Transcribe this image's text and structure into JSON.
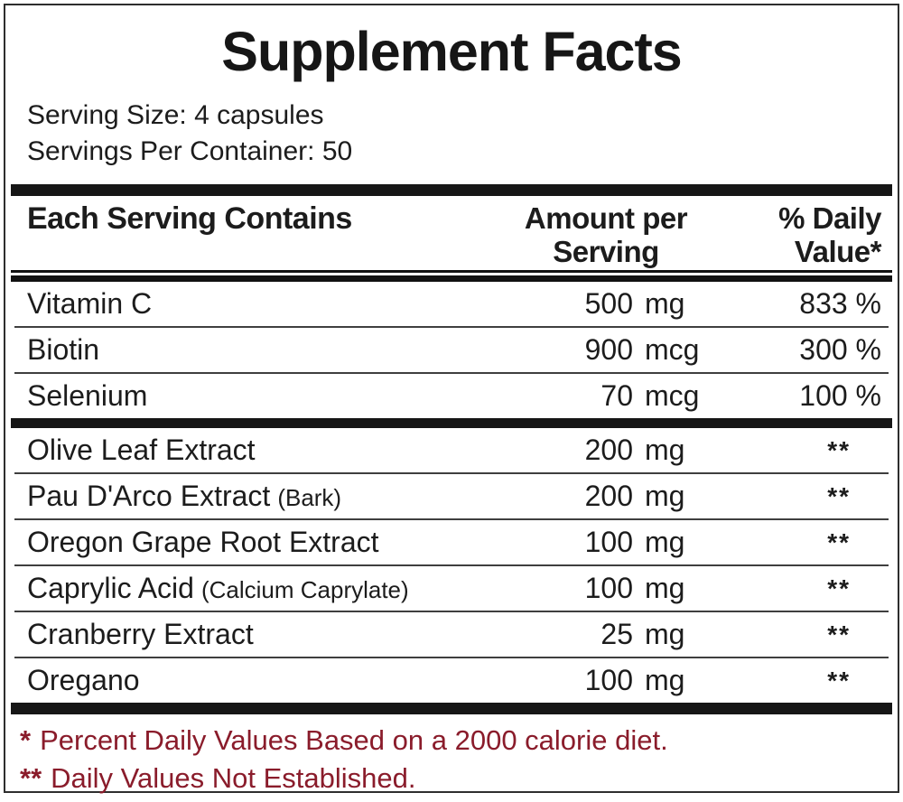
{
  "title": "Supplement Facts",
  "serving_info": {
    "serving_size": "Serving Size: 4 capsules",
    "servings_per_container": "Servings Per Container: 50"
  },
  "table": {
    "header": {
      "ingredient_col": "Each Serving Contains",
      "amount_col_line1": "Amount per",
      "amount_col_line2": "Serving",
      "dv_col_line1": "% Daily",
      "dv_col_line2": "Value*"
    },
    "rows": [
      {
        "name": "Vitamin C",
        "note": "",
        "amount_value": "500",
        "amount_unit": "mg",
        "daily_value": "833 %"
      },
      {
        "name": "Biotin",
        "note": "",
        "amount_value": "900",
        "amount_unit": "mcg",
        "daily_value": "300 %"
      },
      {
        "name": "Selenium",
        "note": "",
        "amount_value": "70",
        "amount_unit": "mcg",
        "daily_value": "100 %"
      },
      {
        "name": "Olive Leaf Extract",
        "note": "",
        "amount_value": "200",
        "amount_unit": "mg",
        "daily_value": "**"
      },
      {
        "name": "Pau D'Arco Extract",
        "note": "(Bark)",
        "amount_value": "200",
        "amount_unit": "mg",
        "daily_value": "**"
      },
      {
        "name": "Oregon Grape Root Extract",
        "note": "",
        "amount_value": "100",
        "amount_unit": "mg",
        "daily_value": "**"
      },
      {
        "name": "Caprylic Acid",
        "note": "(Calcium Caprylate)",
        "amount_value": "100",
        "amount_unit": "mg",
        "daily_value": "**"
      },
      {
        "name": "Cranberry Extract",
        "note": "",
        "amount_value": "25",
        "amount_unit": "mg",
        "daily_value": "**"
      },
      {
        "name": "Oregano",
        "note": "",
        "amount_value": "100",
        "amount_unit": "mg",
        "daily_value": "**"
      }
    ]
  },
  "footnotes": {
    "percent_note_marker": "*",
    "percent_note": "Percent Daily Values Based on a 2000 calorie diet.",
    "na_note_marker": "**",
    "na_note": "Daily Values Not Established."
  },
  "colors": {
    "text": "#1c1c1c",
    "footnote_text": "#8a1c2b",
    "rule": "#161616"
  }
}
